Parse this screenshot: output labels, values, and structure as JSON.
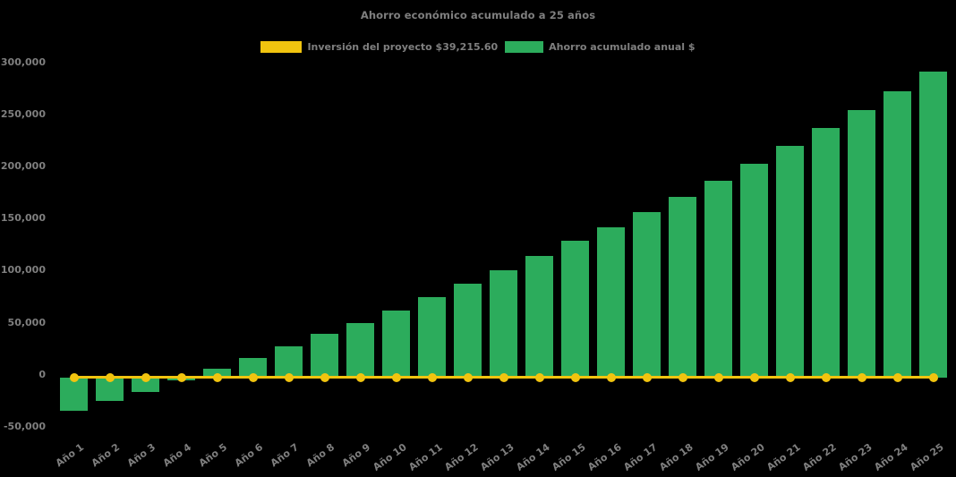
{
  "chart_data": {
    "type": "bar",
    "title": "Ahorro económico acumulado a 25 años",
    "categories": [
      "Año 1",
      "Año 2",
      "Año 3",
      "Año 4",
      "Año 5",
      "Año 6",
      "Año 7",
      "Año 8",
      "Año 9",
      "Año 10",
      "Año 11",
      "Año 12",
      "Año 13",
      "Año 14",
      "Año 15",
      "Año 16",
      "Año 17",
      "Año 18",
      "Año 19",
      "Año 20",
      "Año 21",
      "Año 22",
      "Año 23",
      "Año 24",
      "Año 25"
    ],
    "series": [
      {
        "name": "Inversión del proyecto $39,215.60",
        "type": "line",
        "marker": "circle",
        "color": "#F1C40F",
        "constant_value": 0
      },
      {
        "name": "Ahorro acumulado anual $",
        "type": "bar",
        "color": "#2CAC5C",
        "values": [
          -32000,
          -23000,
          -14000,
          -2500,
          8000,
          19000,
          30000,
          41500,
          52500,
          64000,
          77000,
          90000,
          103000,
          117000,
          131000,
          144500,
          158500,
          173500,
          189000,
          205500,
          222000,
          239500,
          257000,
          275000,
          294000
        ]
      }
    ],
    "investment_amount_label": "$39,215.60",
    "xlabel": "",
    "ylabel": "",
    "ylim": [
      -50000,
      300000
    ],
    "ytick_step": 50000,
    "ytick_labels": [
      "300,000",
      "250,000",
      "200,000",
      "150,000",
      "100,000",
      "50,000",
      "0",
      "-50,000"
    ],
    "grid": false,
    "legend_position": "top",
    "colors": {
      "background": "#000000",
      "text": "#7F7F7F",
      "bar": "#2CAC5C",
      "line": "#F1C40F"
    }
  }
}
